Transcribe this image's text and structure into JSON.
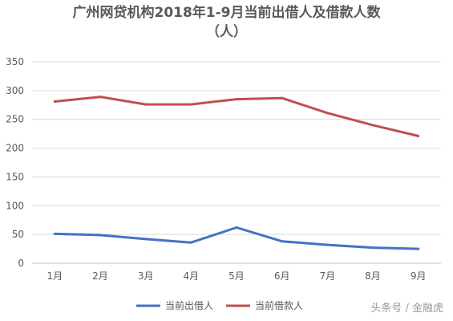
{
  "chart_data": {
    "type": "line",
    "title": "广州网贷机构2018年1-9月当前出借人及借款人数",
    "subtitle": "（人）",
    "categories": [
      "1月",
      "2月",
      "3月",
      "4月",
      "5月",
      "6月",
      "7月",
      "8月",
      "9月"
    ],
    "ylim": [
      0,
      350
    ],
    "yticks": [
      "0",
      "50",
      "100",
      "150",
      "200",
      "250",
      "300",
      "350"
    ],
    "grid": true,
    "legend_position": "bottom",
    "series": [
      {
        "name": "当前出借人",
        "color": "#4472c4",
        "values": [
          51,
          49,
          42,
          36,
          62,
          38,
          32,
          27,
          25
        ]
      },
      {
        "name": "当前借款人",
        "color": "#c0504d",
        "values": [
          281,
          289,
          276,
          276,
          285,
          287,
          261,
          240,
          221
        ]
      }
    ]
  },
  "watermark": "头条号 / 金融虎"
}
